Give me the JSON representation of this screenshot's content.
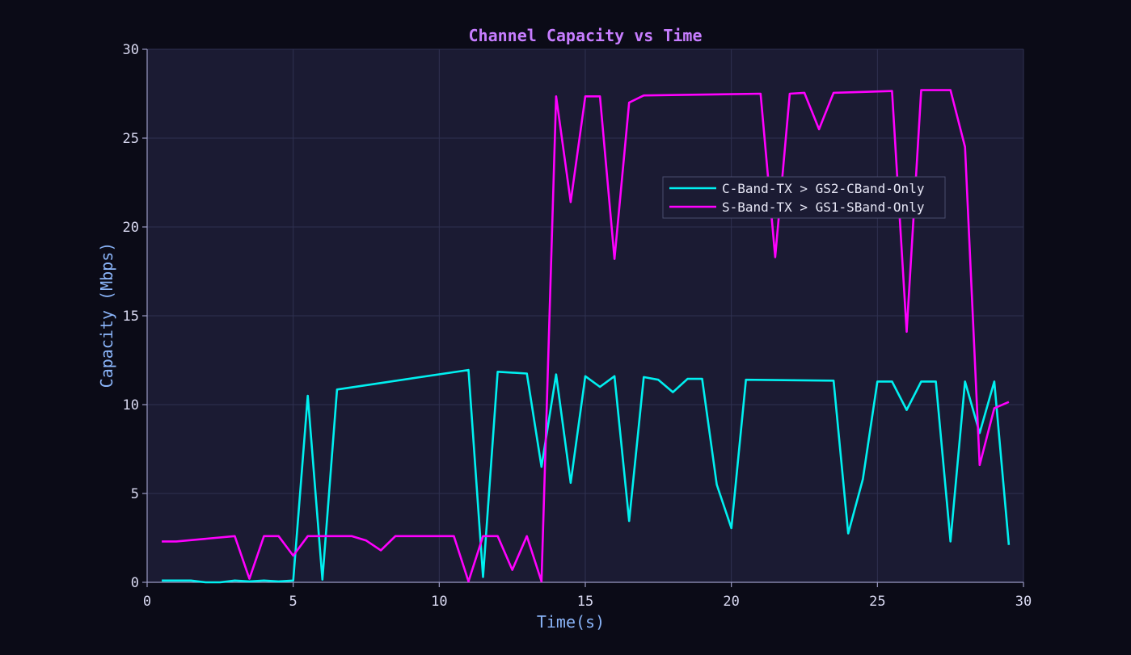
{
  "chart_data": {
    "type": "line",
    "title": "Channel Capacity vs Time",
    "xlabel": "Time(s)",
    "ylabel": "Capacity (Mbps)",
    "xlim": [
      0,
      30
    ],
    "ylim": [
      0,
      30
    ],
    "xticks": [
      0,
      5,
      10,
      15,
      20,
      25,
      30
    ],
    "yticks": [
      0,
      5,
      10,
      15,
      20,
      25,
      30
    ],
    "grid": true,
    "legend_position": "upper-right",
    "colors": {
      "background": "#0b0b17",
      "plot_area": "#1b1b33",
      "grid": "#2f3150",
      "axis": "#9a9ac4"
    },
    "series": [
      {
        "name": "C-Band-TX > GS2-CBand-Only",
        "color": "#00f0f0",
        "x": [
          0.5,
          1,
          1.5,
          2,
          2.5,
          3,
          3.5,
          4,
          4.5,
          5,
          5.5,
          6,
          6.5,
          11,
          11.5,
          12,
          13,
          13.5,
          14,
          14.5,
          15,
          15.5,
          16,
          16.5,
          17,
          17.5,
          18,
          18.5,
          19,
          19.5,
          20,
          20.5,
          23.5,
          24,
          24.5,
          25,
          25.5,
          26,
          26.5,
          27,
          27.5,
          28,
          28.5,
          29,
          29.5
        ],
        "y": [
          0.1,
          0.1,
          0.1,
          0.0,
          0.0,
          0.1,
          0.05,
          0.1,
          0.05,
          0.1,
          10.5,
          0.15,
          10.85,
          11.95,
          0.3,
          11.85,
          11.75,
          6.5,
          11.7,
          5.6,
          11.6,
          11.0,
          11.6,
          3.45,
          11.55,
          11.4,
          10.7,
          11.45,
          11.45,
          5.5,
          3.05,
          11.4,
          11.35,
          2.75,
          5.8,
          11.3,
          11.3,
          9.7,
          11.3,
          11.3,
          2.3,
          11.3,
          8.4,
          11.3,
          2.1
        ]
      },
      {
        "name": "S-Band-TX > GS1-SBand-Only",
        "color": "#ff00ff",
        "x": [
          0.5,
          1,
          3,
          3.5,
          4,
          4.5,
          5,
          5.5,
          7,
          7.5,
          8,
          8.5,
          10.5,
          11,
          11.5,
          12,
          12.5,
          13,
          13.5,
          14,
          14.5,
          15,
          15.5,
          16,
          16.5,
          17,
          21,
          21.5,
          22,
          22.5,
          23,
          23.5,
          25.5,
          26,
          26.5,
          27.5,
          28,
          28.5,
          29,
          29.5
        ],
        "y": [
          2.3,
          2.3,
          2.6,
          0.2,
          2.6,
          2.6,
          1.5,
          2.6,
          2.6,
          2.35,
          1.8,
          2.6,
          2.6,
          0.05,
          2.6,
          2.6,
          0.7,
          2.6,
          0.05,
          27.35,
          21.4,
          27.35,
          27.35,
          18.2,
          27.0,
          27.4,
          27.5,
          18.3,
          27.5,
          27.55,
          25.5,
          27.55,
          27.65,
          14.1,
          27.7,
          27.7,
          24.5,
          6.6,
          9.8,
          10.15
        ]
      }
    ]
  }
}
